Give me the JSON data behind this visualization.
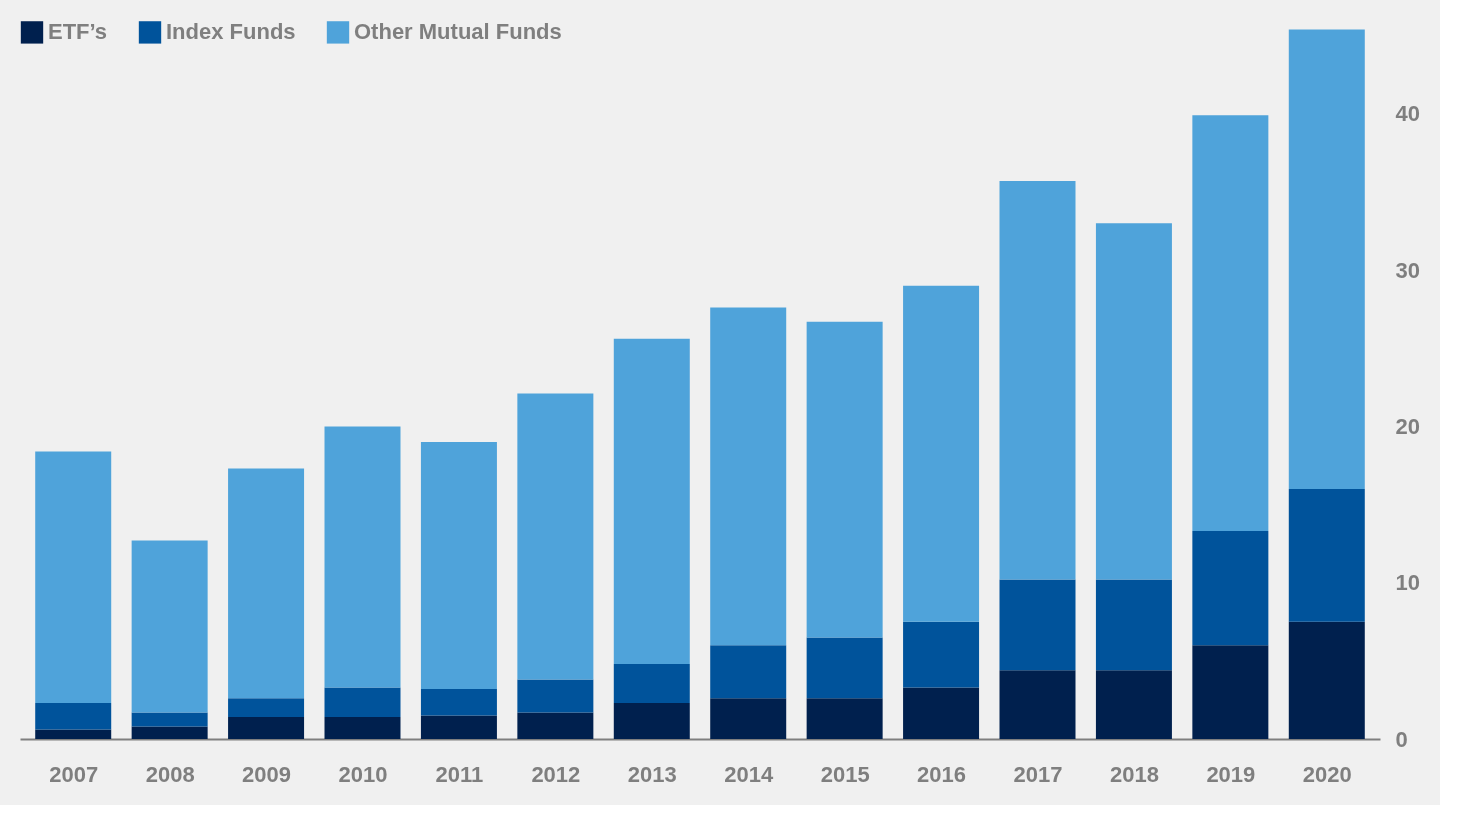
{
  "chart_data": {
    "type": "bar",
    "stacked": true,
    "categories": [
      "2007",
      "2008",
      "2009",
      "2010",
      "2011",
      "2012",
      "2013",
      "2014",
      "2015",
      "2016",
      "2017",
      "2018",
      "2019",
      "2020"
    ],
    "series": [
      {
        "name": "ETF’s",
        "color": "#00204e",
        "values": [
          0.6,
          0.8,
          1.4,
          1.4,
          1.5,
          1.7,
          2.3,
          2.6,
          2.6,
          3.3,
          4.4,
          4.4,
          6.0,
          7.5
        ]
      },
      {
        "name": "Index Funds",
        "color": "#00539b",
        "values": [
          1.7,
          0.9,
          1.2,
          1.9,
          1.7,
          2.1,
          2.5,
          3.4,
          3.9,
          4.2,
          5.8,
          5.8,
          7.3,
          8.5
        ]
      },
      {
        "name": "Other Mutual Funds",
        "color": "#4fa3da",
        "values": [
          16.1,
          11.0,
          14.7,
          16.7,
          15.8,
          18.3,
          20.8,
          21.6,
          20.2,
          21.5,
          25.5,
          22.8,
          26.6,
          29.4
        ]
      }
    ],
    "ylim": [
      0,
      46
    ],
    "yticks": [
      0,
      10,
      20,
      30,
      40
    ],
    "grid": false,
    "legend": "top left"
  }
}
